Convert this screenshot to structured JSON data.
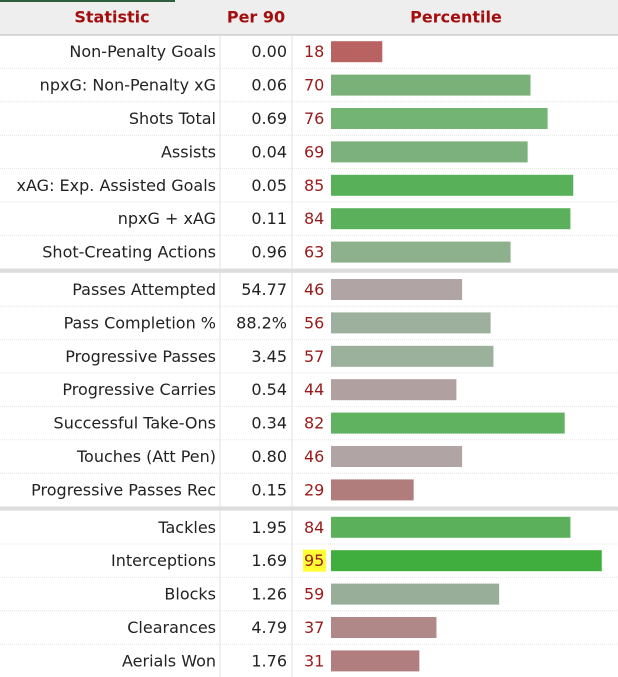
{
  "header": [
    "Statistic",
    "Per 90",
    "Percentile"
  ],
  "xlim": [
    0,
    100
  ],
  "groups": [
    {
      "rows": [
        {
          "statistic": "Non-Penalty Goals",
          "per90": "0.00",
          "percentile": 18,
          "color": "#b86262"
        },
        {
          "statistic": "npxG: Non-Penalty xG",
          "per90": "0.06",
          "percentile": 70,
          "color": "#79b179"
        },
        {
          "statistic": "Shots Total",
          "per90": "0.69",
          "percentile": 76,
          "color": "#73b373"
        },
        {
          "statistic": "Assists",
          "per90": "0.04",
          "percentile": 69,
          "color": "#7cb07c"
        },
        {
          "statistic": "xAG: Exp. Assisted Goals",
          "per90": "0.05",
          "percentile": 85,
          "color": "#58b058"
        },
        {
          "statistic": "npxG + xAG",
          "per90": "0.11",
          "percentile": 84,
          "color": "#5bb15b"
        },
        {
          "statistic": "Shot-Creating Actions",
          "per90": "0.96",
          "percentile": 63,
          "color": "#8db08d"
        }
      ]
    },
    {
      "rows": [
        {
          "statistic": "Passes Attempted",
          "per90": "54.77",
          "percentile": 46,
          "color": "#b0a4a4"
        },
        {
          "statistic": "Pass Completion %",
          "per90": "88.2%",
          "percentile": 56,
          "color": "#9db09d"
        },
        {
          "statistic": "Progressive Passes",
          "per90": "3.45",
          "percentile": 57,
          "color": "#9bb19b"
        },
        {
          "statistic": "Progressive Carries",
          "per90": "0.54",
          "percentile": 44,
          "color": "#b0a0a0"
        },
        {
          "statistic": "Successful Take-Ons",
          "per90": "0.34",
          "percentile": 82,
          "color": "#60b160"
        },
        {
          "statistic": "Touches (Att Pen)",
          "per90": "0.80",
          "percentile": 46,
          "color": "#b0a4a4"
        },
        {
          "statistic": "Progressive Passes Rec",
          "per90": "0.15",
          "percentile": 29,
          "color": "#b07c7c"
        }
      ]
    },
    {
      "rows": [
        {
          "statistic": "Tackles",
          "per90": "1.95",
          "percentile": 84,
          "color": "#5bb15b"
        },
        {
          "statistic": "Interceptions",
          "per90": "1.69",
          "percentile": 95,
          "color": "#3fae3f",
          "highlight": true
        },
        {
          "statistic": "Blocks",
          "per90": "1.26",
          "percentile": 59,
          "color": "#98ae98"
        },
        {
          "statistic": "Clearances",
          "per90": "4.79",
          "percentile": 37,
          "color": "#b08888"
        },
        {
          "statistic": "Aerials Won",
          "per90": "1.76",
          "percentile": 31,
          "color": "#b07e7e"
        }
      ]
    }
  ]
}
